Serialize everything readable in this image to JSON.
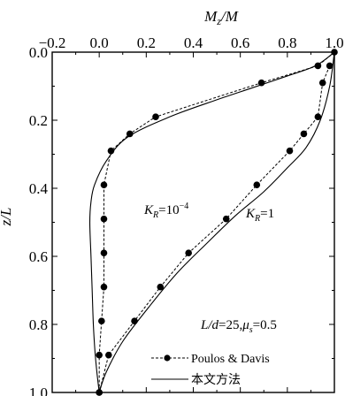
{
  "chart_data": {
    "type": "line",
    "title_fragment": "",
    "xlabel": "M",
    "xlabel_sub": "z",
    "xlabel_tail": "/M",
    "ylabel": "z/L",
    "xlim": [
      -0.2,
      1.0
    ],
    "ylim": [
      0.0,
      1.0
    ],
    "y_inverted": true,
    "x_axis_position": "top",
    "x_ticks": [
      -0.2,
      0.0,
      0.2,
      0.4,
      0.6,
      0.8,
      1.0
    ],
    "x_tick_labels": [
      "−0.2",
      "0.0",
      "0.2",
      "0.4",
      "0.6",
      "0.8",
      "1.0"
    ],
    "y_ticks": [
      0.0,
      0.2,
      0.4,
      0.6,
      0.8,
      1.0
    ],
    "y_tick_labels": [
      "0.0",
      "0.2",
      "0.4",
      "0.6",
      "0.8",
      "1.0"
    ],
    "legend_position": "bottom-right",
    "series": [
      {
        "name": "Poulos & Davis",
        "group": "KR=10^-4",
        "style": "dashed-markers",
        "x": [
          1.0,
          0.93,
          0.69,
          0.24,
          0.13,
          0.05,
          0.02,
          0.02,
          0.02,
          0.02,
          0.01,
          0.0,
          0.0
        ],
        "y": [
          0.0,
          0.04,
          0.09,
          0.19,
          0.24,
          0.29,
          0.39,
          0.49,
          0.59,
          0.69,
          0.79,
          0.89,
          1.0
        ]
      },
      {
        "name": "Poulos & Davis",
        "group": "KR=1",
        "style": "dashed-markers",
        "x": [
          0.98,
          0.95,
          0.93,
          0.87,
          0.81,
          0.67,
          0.54,
          0.38,
          0.26,
          0.15,
          0.04,
          0.0
        ],
        "y": [
          0.04,
          0.09,
          0.19,
          0.24,
          0.29,
          0.39,
          0.49,
          0.59,
          0.69,
          0.79,
          0.89,
          1.0
        ]
      },
      {
        "name": "本文方法",
        "group": "KR=10^-4",
        "style": "solid",
        "x": [
          1.0,
          0.92,
          0.8,
          0.65,
          0.5,
          0.3,
          0.12,
          0.03,
          -0.02,
          -0.035,
          -0.04,
          -0.035,
          -0.03,
          -0.025,
          -0.018,
          -0.01,
          0.0
        ],
        "y": [
          0.0,
          0.04,
          0.07,
          0.105,
          0.14,
          0.19,
          0.25,
          0.32,
          0.39,
          0.44,
          0.5,
          0.6,
          0.7,
          0.8,
          0.88,
          0.94,
          1.0
        ]
      },
      {
        "name": "本文方法",
        "group": "KR=1",
        "style": "solid",
        "x": [
          1.0,
          0.98,
          0.94,
          0.88,
          0.8,
          0.7,
          0.58,
          0.46,
          0.33,
          0.21,
          0.1,
          0.03,
          0.0
        ],
        "y": [
          0.0,
          0.1,
          0.2,
          0.28,
          0.34,
          0.41,
          0.48,
          0.56,
          0.65,
          0.75,
          0.85,
          0.94,
          1.0
        ]
      }
    ],
    "annotations": {
      "kr_low_base": "K",
      "kr_low_sub": "R",
      "kr_low_value": "=10",
      "kr_low_exp": "−4",
      "kr_high_base": "K",
      "kr_high_sub": "R",
      "kr_high_value": "=1",
      "params_ld": "L/d",
      "params_ld_value": "=25,",
      "params_mu": "μ",
      "params_mu_sub": "s",
      "params_mu_value": "=0.5"
    },
    "legend": [
      {
        "label": "Poulos & Davis",
        "style": "dashed-markers"
      },
      {
        "label": "本文方法",
        "style": "solid"
      }
    ],
    "colors": {
      "line": "#000000",
      "marker": "#000000",
      "background": "#ffffff"
    }
  }
}
